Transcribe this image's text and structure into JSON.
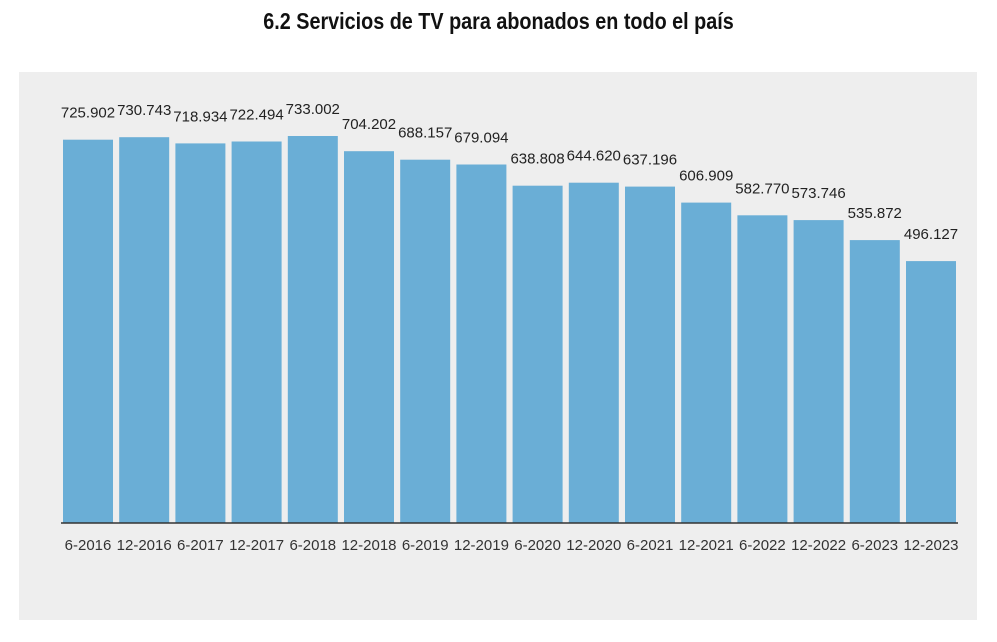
{
  "title": "6.2 Servicios de TV para abonados en todo el país",
  "colors": {
    "bar": "#6aaed6",
    "panel": "#eeeeee",
    "axis": "#333333",
    "text": "#222222"
  },
  "chart_data": {
    "type": "bar",
    "title": "6.2 Servicios de TV para abonados en todo el país",
    "xlabel": "",
    "ylabel": "",
    "grid": false,
    "categories": [
      "6-2016",
      "12-2016",
      "6-2017",
      "12-2017",
      "6-2018",
      "12-2018",
      "6-2019",
      "12-2019",
      "6-2020",
      "12-2020",
      "6-2021",
      "12-2021",
      "6-2022",
      "12-2022",
      "6-2023",
      "12-2023"
    ],
    "values": [
      725902,
      730743,
      718934,
      722494,
      733002,
      704202,
      688157,
      679094,
      638808,
      644620,
      637196,
      606909,
      582770,
      573746,
      535872,
      496127
    ],
    "data_labels": [
      "725.902",
      "730.743",
      "718.934",
      "722.494",
      "733.002",
      "704.202",
      "688.157",
      "679.094",
      "638.808",
      "644.620",
      "637.196",
      "606.909",
      "582.770",
      "573.746",
      "535.872",
      "496.127"
    ],
    "tick_labels": [
      "6-2016",
      "12-2016",
      "6-2017",
      "12-2017",
      "6-2018",
      "12-2018",
      "6-2019",
      "12-2019",
      "6-2020",
      "12-2020",
      "6-2021",
      "12-2021",
      "6-2022",
      "12-2022",
      "6-2023",
      "12-2023"
    ],
    "ylim": [
      0,
      733002
    ]
  }
}
